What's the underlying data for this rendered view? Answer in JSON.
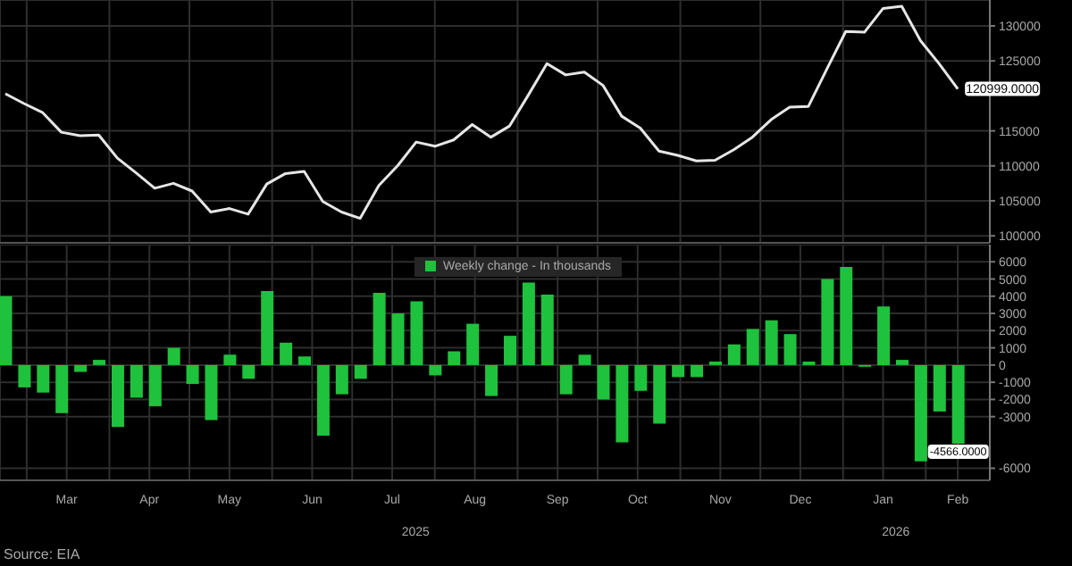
{
  "chart_data": [
    {
      "type": "line",
      "xlim": [
        "2025-02-19",
        "2026-02-25"
      ],
      "ylim": [
        99000,
        133700
      ],
      "yticks": [
        100000,
        105000,
        110000,
        115000,
        125000,
        130000
      ],
      "xticks": [
        {
          "value": "2025-03-01",
          "label": null
        },
        {
          "value": "2025-04-01",
          "label": null
        },
        {
          "value": "2025-05-01",
          "label": null
        },
        {
          "value": "2025-06-01",
          "label": null
        },
        {
          "value": "2025-07-01",
          "label": null
        },
        {
          "value": "2025-08-01",
          "label": null
        },
        {
          "value": "2025-09-01",
          "label": null
        },
        {
          "value": "2025-10-01",
          "label": null
        },
        {
          "value": "2025-11-01",
          "label": null
        },
        {
          "value": "2025-12-01",
          "label": null
        },
        {
          "value": "2026-01-01",
          "label": null
        },
        {
          "value": "2026-02-01",
          "label": null
        }
      ],
      "grid": true,
      "tick_labels": "y",
      "legend": false,
      "x": [
        "2025-02-21",
        "2025-02-28",
        "2025-03-07",
        "2025-03-14",
        "2025-03-21",
        "2025-03-28",
        "2025-04-04",
        "2025-04-11",
        "2025-04-18",
        "2025-04-25",
        "2025-05-02",
        "2025-05-09",
        "2025-05-16",
        "2025-05-23",
        "2025-05-30",
        "2025-06-06",
        "2025-06-13",
        "2025-06-20",
        "2025-06-27",
        "2025-07-04",
        "2025-07-11",
        "2025-07-18",
        "2025-07-25",
        "2025-08-01",
        "2025-08-08",
        "2025-08-15",
        "2025-08-22",
        "2025-08-29",
        "2025-09-05",
        "2025-09-12",
        "2025-09-19",
        "2025-09-26",
        "2025-10-03",
        "2025-10-10",
        "2025-10-17",
        "2025-10-24",
        "2025-10-31",
        "2025-11-07",
        "2025-11-14",
        "2025-11-21",
        "2025-11-28",
        "2025-12-05",
        "2025-12-12",
        "2025-12-19",
        "2025-12-26",
        "2026-01-02",
        "2026-01-09",
        "2026-01-16",
        "2026-01-23",
        "2026-01-30",
        "2026-02-06",
        "2026-02-13"
      ],
      "series": [
        {
          "color": "#e6e6e6",
          "values": [
            120300,
            118900,
            117600,
            114800,
            114300,
            114400,
            111100,
            109000,
            106800,
            107500,
            106400,
            103400,
            103900,
            103100,
            107400,
            108900,
            109200,
            104900,
            103400,
            102500,
            107200,
            110000,
            113400,
            112800,
            113700,
            115900,
            114100,
            115700,
            120100,
            124600,
            123000,
            123400,
            121500,
            117100,
            115400,
            112100,
            111500,
            110700,
            110800,
            112300,
            114100,
            116600,
            118400,
            118500,
            123900,
            129200,
            129100,
            132500,
            132800,
            127900,
            124600,
            120999
          ],
          "value_labels": [
            null,
            null,
            null,
            null,
            null,
            null,
            null,
            null,
            null,
            null,
            null,
            null,
            null,
            null,
            null,
            null,
            null,
            null,
            null,
            null,
            null,
            null,
            null,
            null,
            null,
            null,
            null,
            null,
            null,
            null,
            null,
            null,
            null,
            null,
            null,
            null,
            null,
            null,
            null,
            null,
            null,
            null,
            null,
            null,
            null,
            null,
            null,
            null,
            null,
            null,
            null,
            "120999.0000"
          ]
        }
      ]
    },
    {
      "type": "bar",
      "xlim": [
        "2025-02-19",
        "2026-02-25"
      ],
      "ylim": [
        -6700,
        7000
      ],
      "yticks": [
        -6000,
        -3000,
        -2000,
        -1000,
        0,
        1000,
        2000,
        3000,
        4000,
        5000,
        6000
      ],
      "grid": true,
      "legend": "top",
      "xticks": [
        {
          "value": "2025-03-01",
          "label": null
        },
        {
          "value": "2025-03-16",
          "label": "Mar"
        },
        {
          "value": "2025-04-01",
          "label": null
        },
        {
          "value": "2025-04-16",
          "label": "Apr"
        },
        {
          "value": "2025-05-01",
          "label": null
        },
        {
          "value": "2025-05-16",
          "label": "May"
        },
        {
          "value": "2025-06-01",
          "label": null
        },
        {
          "value": "2025-06-16",
          "label": "Jun"
        },
        {
          "value": "2025-07-01",
          "label": null
        },
        {
          "value": "2025-07-16",
          "label": "Jul"
        },
        {
          "value": "2025-08-01",
          "label": null
        },
        {
          "value": "2025-08-16",
          "label": "Aug"
        },
        {
          "value": "2025-09-01",
          "label": null
        },
        {
          "value": "2025-09-16",
          "label": "Sep"
        },
        {
          "value": "2025-10-01",
          "label": null
        },
        {
          "value": "2025-10-16",
          "label": "Oct"
        },
        {
          "value": "2025-11-01",
          "label": null
        },
        {
          "value": "2025-11-16",
          "label": "Nov"
        },
        {
          "value": "2025-12-01",
          "label": null
        },
        {
          "value": "2025-12-16",
          "label": "Dec"
        },
        {
          "value": "2026-01-01",
          "label": null
        },
        {
          "value": "2026-01-16",
          "label": "Jan"
        },
        {
          "value": "2026-02-01",
          "label": null
        },
        {
          "value": "2026-02-13",
          "label": "Feb"
        }
      ],
      "x": [
        "2025-02-21",
        "2025-02-28",
        "2025-03-07",
        "2025-03-14",
        "2025-03-21",
        "2025-03-28",
        "2025-04-04",
        "2025-04-11",
        "2025-04-18",
        "2025-04-25",
        "2025-05-02",
        "2025-05-09",
        "2025-05-16",
        "2025-05-23",
        "2025-05-30",
        "2025-06-06",
        "2025-06-13",
        "2025-06-20",
        "2025-06-27",
        "2025-07-04",
        "2025-07-11",
        "2025-07-18",
        "2025-07-25",
        "2025-08-01",
        "2025-08-08",
        "2025-08-15",
        "2025-08-22",
        "2025-08-29",
        "2025-09-05",
        "2025-09-12",
        "2025-09-19",
        "2025-09-26",
        "2025-10-03",
        "2025-10-10",
        "2025-10-17",
        "2025-10-24",
        "2025-10-31",
        "2025-11-07",
        "2025-11-14",
        "2025-11-21",
        "2025-11-28",
        "2025-12-05",
        "2025-12-12",
        "2025-12-19",
        "2025-12-26",
        "2026-01-02",
        "2026-01-09",
        "2026-01-16",
        "2026-01-23",
        "2026-01-30",
        "2026-02-06",
        "2026-02-13"
      ],
      "series": [
        {
          "name": "Weekly change - In thousands",
          "color": "#1fc23c",
          "values": [
            4000,
            -1300,
            -1600,
            -2800,
            -400,
            300,
            -3600,
            -1900,
            -2400,
            1000,
            -1100,
            -3200,
            600,
            -800,
            4300,
            1300,
            500,
            -4100,
            -1700,
            -800,
            4200,
            3000,
            3700,
            -600,
            800,
            2400,
            -1800,
            1700,
            4800,
            4100,
            -1700,
            600,
            -2000,
            -4500,
            -1500,
            -3400,
            -700,
            -700,
            200,
            1200,
            2100,
            2600,
            1800,
            200,
            5000,
            5700,
            -100,
            3400,
            300,
            -5600,
            -2700,
            -4566
          ],
          "value_labels": [
            null,
            null,
            null,
            null,
            null,
            null,
            null,
            null,
            null,
            null,
            null,
            null,
            null,
            null,
            null,
            null,
            null,
            null,
            null,
            null,
            null,
            null,
            null,
            null,
            null,
            null,
            null,
            null,
            null,
            null,
            null,
            null,
            null,
            null,
            null,
            null,
            null,
            null,
            null,
            null,
            null,
            null,
            null,
            null,
            null,
            null,
            null,
            null,
            null,
            null,
            null,
            "-4566.0000"
          ]
        }
      ],
      "annotations": [
        "2025",
        "2026",
        "Source: EIA"
      ]
    }
  ]
}
